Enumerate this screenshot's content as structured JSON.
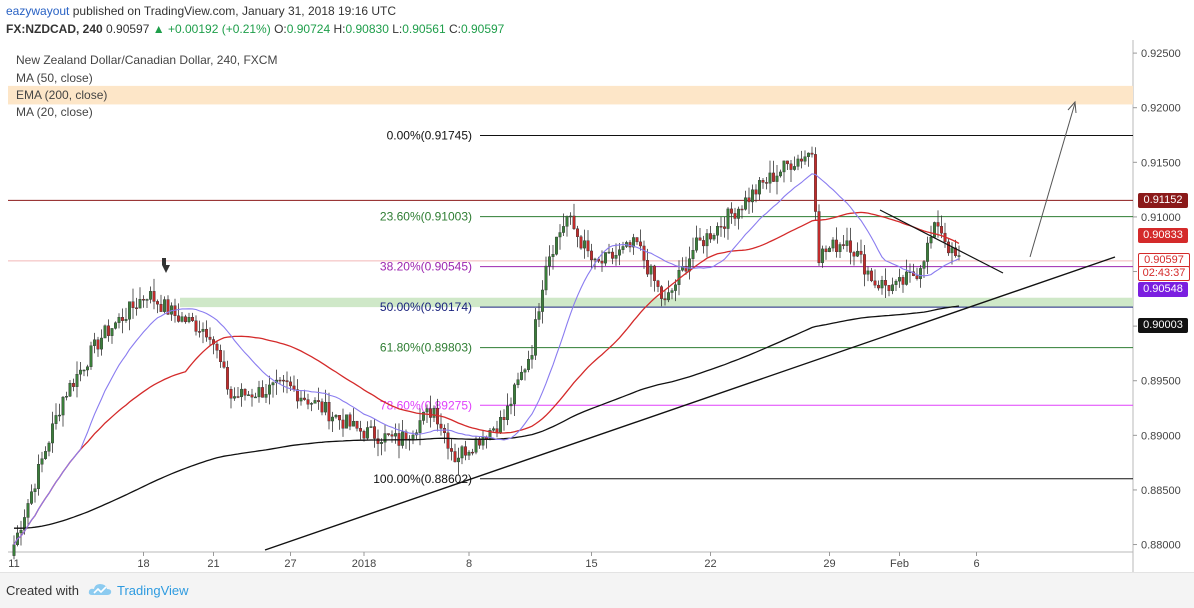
{
  "header": {
    "author": "eazywayout",
    "published_text": "published on TradingView.com, January 31, 2018 19:16 UTC",
    "symbol": "FX:NZDCAD, 240",
    "last": "0.90597",
    "change": "▲ +0.00192 (+0.21%)",
    "open_label": "O:",
    "open": "0.90724",
    "high_label": "H:",
    "high": "0.90830",
    "low_label": "L:",
    "low": "0.90561",
    "close_label": "C:",
    "close": "0.90597"
  },
  "legend": {
    "title": "New Zealand Dollar/Canadian Dollar, 240, FXCM",
    "ma50": "MA (50, close)",
    "ema200": "EMA (200, close)",
    "ma20": "MA (20, close)"
  },
  "footer": {
    "created_with": "Created with",
    "brand": "TradingView"
  },
  "colors": {
    "up_candle": "#3a7d3a",
    "down_candle": "#c02b2b",
    "ma50": "#d42a2a",
    "ema200": "#111111",
    "ma20": "#8a7cf0",
    "fib_green": "#2e7d32",
    "fib_purple": "#9c27b0",
    "fib_magenta": "#e040fb",
    "resistance": "#8b1a1a",
    "support_zone": "#cfe8c8",
    "top_zone": "#fde6c8"
  },
  "price_tags": [
    {
      "text": "0.91152",
      "bg": "#8b1a1a",
      "price": 0.91152
    },
    {
      "text": "0.90833",
      "bg": "#d42a2a",
      "price": 0.90833
    },
    {
      "text": "0.90597",
      "bg": "#ffffff",
      "fg": "#d42a2a",
      "price": 0.90597
    },
    {
      "text": "02:43:37",
      "bg": "#ffffff",
      "fg": "#d42a2a",
      "price": 0.9048
    },
    {
      "text": "0.90548",
      "bg": "#7b1fe0",
      "price": 0.90335
    },
    {
      "text": "0.90003",
      "bg": "#111111",
      "price": 0.90003
    }
  ],
  "chart_data": {
    "type": "candlestick",
    "title": "New Zealand Dollar/Canadian Dollar, 240, FXCM",
    "y_ticks": [
      "0.92500",
      "0.92000",
      "0.91500",
      "0.91000",
      "0.90500",
      "0.90000",
      "0.89500",
      "0.89000",
      "0.88500",
      "0.88000"
    ],
    "y_tick_values": [
      0.925,
      0.92,
      0.915,
      0.91,
      0.905,
      0.9,
      0.895,
      0.89,
      0.885,
      0.88
    ],
    "ylim": [
      0.8795,
      0.9262
    ],
    "x_ticks": [
      "11",
      "18",
      "21",
      "27",
      "2018",
      "8",
      "15",
      "22",
      "29",
      "Feb",
      "6"
    ],
    "x_tick_bar_index": [
      0,
      37,
      57,
      79,
      100,
      130,
      165,
      199,
      233,
      253,
      275
    ],
    "bar_count": 290,
    "fibonacci": [
      {
        "label": "0.00%(0.91745)",
        "price": 0.91745,
        "color": "#111111"
      },
      {
        "label": "23.60%(0.91003)",
        "price": 0.91003,
        "color": "#2e7d32"
      },
      {
        "label": "38.20%(0.90545)",
        "price": 0.90545,
        "color": "#9c27b0"
      },
      {
        "label": "50.00%(0.90174)",
        "price": 0.90174,
        "color": "#1a237e"
      },
      {
        "label": "61.80%(0.89803)",
        "price": 0.89803,
        "color": "#2e7d32"
      },
      {
        "label": "78.60%(0.89275)",
        "price": 0.89275,
        "color": "#e040fb"
      },
      {
        "label": "100.00%(0.88602)",
        "price": 0.88602,
        "color": "#111111"
      }
    ],
    "resistance_price": 0.91152,
    "current_price": 0.90597,
    "support_zone": [
      0.90174,
      0.9026
    ],
    "top_zone": [
      0.9203,
      0.922
    ],
    "key_points": [
      {
        "bar": 0,
        "price": 0.88
      },
      {
        "bar": 14,
        "price": 0.8935
      },
      {
        "bar": 25,
        "price": 0.899
      },
      {
        "bar": 38,
        "price": 0.903
      },
      {
        "bar": 46,
        "price": 0.901
      },
      {
        "bar": 56,
        "price": 0.8995
      },
      {
        "bar": 62,
        "price": 0.8935
      },
      {
        "bar": 78,
        "price": 0.8945
      },
      {
        "bar": 88,
        "price": 0.8925
      },
      {
        "bar": 98,
        "price": 0.8905
      },
      {
        "bar": 110,
        "price": 0.8895
      },
      {
        "bar": 120,
        "price": 0.8925
      },
      {
        "bar": 126,
        "price": 0.888
      },
      {
        "bar": 140,
        "price": 0.8915
      },
      {
        "bar": 148,
        "price": 0.898
      },
      {
        "bar": 152,
        "price": 0.906
      },
      {
        "bar": 158,
        "price": 0.91
      },
      {
        "bar": 166,
        "price": 0.9055
      },
      {
        "bar": 178,
        "price": 0.9075
      },
      {
        "bar": 186,
        "price": 0.902
      },
      {
        "bar": 194,
        "price": 0.907
      },
      {
        "bar": 204,
        "price": 0.91
      },
      {
        "bar": 214,
        "price": 0.913
      },
      {
        "bar": 222,
        "price": 0.915
      },
      {
        "bar": 228,
        "price": 0.916
      },
      {
        "bar": 230,
        "price": 0.9065
      },
      {
        "bar": 238,
        "price": 0.908
      },
      {
        "bar": 246,
        "price": 0.904
      },
      {
        "bar": 252,
        "price": 0.9035
      },
      {
        "bar": 258,
        "price": 0.905
      },
      {
        "bar": 264,
        "price": 0.9095
      },
      {
        "bar": 268,
        "price": 0.9065
      },
      {
        "bar": 270,
        "price": 0.906
      }
    ]
  }
}
